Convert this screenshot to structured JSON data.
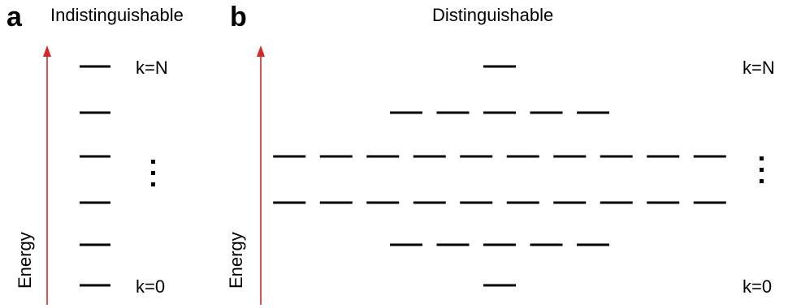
{
  "panels": [
    {
      "letter": "a",
      "title": "Indistinguishable",
      "axis_label": "Energy",
      "top_label": "k=N",
      "bottom_label": "k=0",
      "levels_per_row": [
        1,
        1,
        1,
        1,
        1,
        1
      ]
    },
    {
      "letter": "b",
      "title": "Distinguishable",
      "axis_label": "Energy",
      "top_label": "k=N",
      "bottom_label": "k=0",
      "levels_per_row": [
        1,
        5,
        10,
        10,
        5,
        1
      ]
    }
  ],
  "colors": {
    "arrow": "#d62728",
    "level": "#000000"
  }
}
